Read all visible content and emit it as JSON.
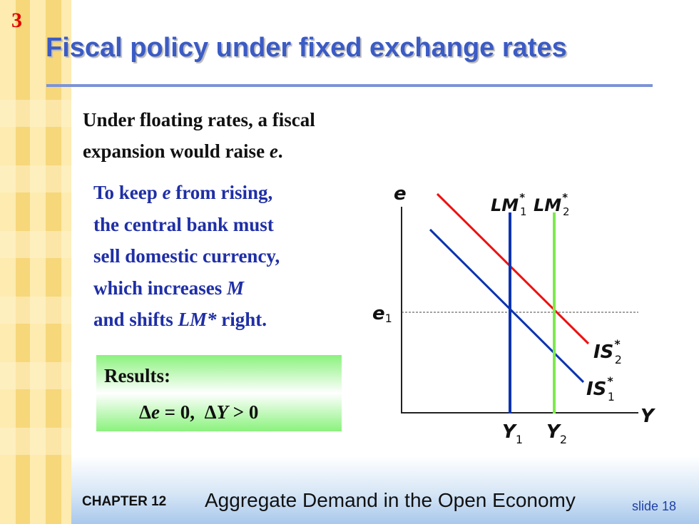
{
  "slide": {
    "number": "3",
    "title": "Fiscal policy under fixed exchange rates"
  },
  "intro": {
    "line1": "Under floating rates, a fiscal",
    "line2_text": "expansion would raise ",
    "line2_var": "e",
    "line2_end": "."
  },
  "explanation": {
    "l1_a": "To keep ",
    "l1_var": "e",
    "l1_b": " from rising,",
    "l2": "the central bank must",
    "l3": "sell domestic currency,",
    "l4_a": "which increases ",
    "l4_var": "M",
    "l5_a": "and shifts ",
    "l5_var": "LM*",
    "l5_b": " right."
  },
  "results": {
    "label": "Results:",
    "delta": "Δ",
    "var_e": "e",
    "eq1": " = 0,  ",
    "var_y": "Y",
    "eq2": " > 0"
  },
  "diagram": {
    "axis_y_label": "e",
    "axis_x_label": "Y",
    "e_level_base": "e",
    "e_level_sub": "1",
    "y1_base": "Y",
    "y1_sub": "1",
    "y2_base": "Y",
    "y2_sub": "2",
    "lm1_base": "LM",
    "lm1_sup": "*",
    "lm1_sub": "1",
    "lm2_base": "LM",
    "lm2_sup": "*",
    "lm2_sub": "2",
    "is1_base": "IS",
    "is1_sup": "*",
    "is1_sub": "1",
    "is2_base": "IS",
    "is2_sup": "*",
    "is2_sub": "2",
    "colors": {
      "lm1": "#0b33b0",
      "lm2": "#7cea4a",
      "is1": "#0b33b0",
      "is2": "#ee1111",
      "axes": "#222222",
      "guide": "#444444"
    }
  },
  "footer": {
    "chapter": "CHAPTER 12",
    "title": "Aggregate Demand in the Open Economy",
    "slide_label": "slide 18"
  }
}
